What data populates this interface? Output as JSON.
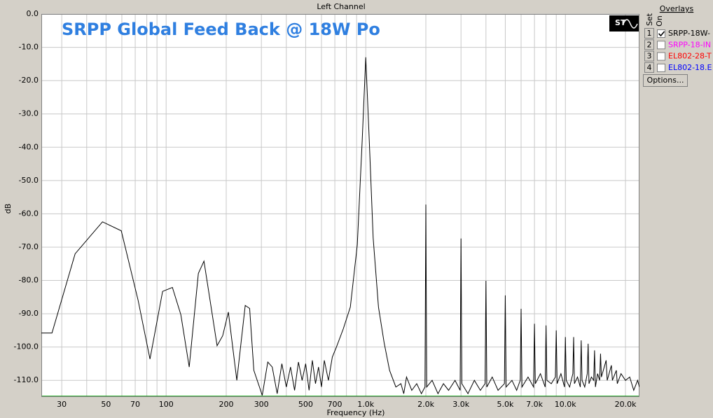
{
  "chart_data": {
    "type": "line",
    "title": "Left Channel",
    "annotation": "SRPP Global Feed Back @ 18W Po",
    "xlabel": "Frequency (Hz)",
    "ylabel": "dB",
    "xscale": "log",
    "grid": true,
    "xlim": [
      23.7,
      23500
    ],
    "ylim": [
      -115,
      0
    ],
    "xticks": [
      30,
      50,
      70,
      100,
      200,
      300,
      500,
      700,
      {
        "value": 1000,
        "label": "1.0k"
      },
      {
        "value": 2000,
        "label": "2.0k"
      },
      {
        "value": 3000,
        "label": "3.0k"
      },
      {
        "value": 5000,
        "label": "5.0k"
      },
      {
        "value": 7000,
        "label": "7.0k"
      },
      {
        "value": 10000,
        "label": "10.0k"
      },
      {
        "value": 20000,
        "label": "20.0k"
      }
    ],
    "xminorticks": [
      40,
      60,
      80,
      90,
      400,
      600,
      800,
      900,
      4000,
      6000,
      8000,
      9000
    ],
    "yticks": [
      {
        "value": 0,
        "label": "0.0"
      },
      {
        "value": -10,
        "label": "-10.0"
      },
      {
        "value": -20,
        "label": "-20.0"
      },
      {
        "value": -30,
        "label": "-30.0"
      },
      {
        "value": -40,
        "label": "-40.0"
      },
      {
        "value": -50,
        "label": "-50.0"
      },
      {
        "value": -60,
        "label": "-60.0"
      },
      {
        "value": -70,
        "label": "-70.0"
      },
      {
        "value": -80,
        "label": "-80.0"
      },
      {
        "value": -90,
        "label": "-90.0"
      },
      {
        "value": -100,
        "label": "-100.0"
      },
      {
        "value": -110,
        "label": "-110.0"
      }
    ],
    "x": [
      23.7,
      26.8,
      35,
      48,
      59.6,
      72.4,
      83,
      96,
      107.5,
      118.5,
      130.5,
      145,
      154.7,
      166,
      180,
      192,
      205,
      226,
      249,
      262,
      275,
      303,
      323,
      340,
      360,
      380,
      400,
      420,
      440,
      460,
      480,
      500,
      520,
      540,
      560,
      580,
      600,
      620,
      650,
      680,
      713,
      772,
      837,
      907,
      960,
      1000,
      1041,
      1089,
      1158,
      1236,
      1316,
      1415,
      1500,
      1550,
      1600,
      1700,
      1800,
      1900,
      1980,
      2000,
      2020,
      2150,
      2300,
      2450,
      2600,
      2800,
      2970,
      3000,
      3030,
      3250,
      3500,
      3750,
      3960,
      4000,
      4040,
      4300,
      4600,
      4950,
      5000,
      5050,
      5400,
      5700,
      5940,
      6000,
      6060,
      6500,
      6930,
      7000,
      7070,
      7500,
      7920,
      8000,
      8080,
      8500,
      8910,
      9000,
      9090,
      9500,
      9900,
      10000,
      10100,
      10500,
      10900,
      11000,
      11100,
      11500,
      11880,
      12000,
      12120,
      12500,
      12870,
      13000,
      13130,
      13500,
      13860,
      14000,
      14140,
      14500,
      14850,
      15000,
      15150,
      16000,
      16200,
      17000,
      17200,
      18000,
      18200,
      19000,
      20000,
      21000,
      22000,
      23000,
      23500
    ],
    "series": [
      {
        "name": "SRPP-18W-",
        "color": "#000000",
        "values": [
          -95.8,
          -95.8,
          -72,
          -62.4,
          -65.1,
          -86,
          -103.6,
          -83.3,
          -82.1,
          -90.3,
          -106,
          -77.9,
          -74.2,
          -86,
          -99.6,
          -96.6,
          -89.5,
          -110,
          -87.5,
          -88.4,
          -107,
          -114.5,
          -104.5,
          -106,
          -114,
          -105,
          -112,
          -106,
          -113,
          -104.5,
          -110,
          -105,
          -113,
          -104,
          -111,
          -106,
          -112,
          -104,
          -110,
          -103,
          -100,
          -94.5,
          -88,
          -69.3,
          -37.8,
          -13,
          -37.8,
          -67.2,
          -88,
          -98.7,
          -107,
          -112,
          -111,
          -114,
          -109,
          -113,
          -111,
          -114,
          -112,
          -57.2,
          -112,
          -110,
          -114,
          -111,
          -113,
          -110,
          -113,
          -67.4,
          -111,
          -114,
          -110,
          -113,
          -111,
          -80.1,
          -112,
          -109,
          -113,
          -111,
          -84.5,
          -112,
          -110,
          -113,
          -110,
          -88.5,
          -112,
          -109,
          -112,
          -93,
          -111,
          -108,
          -112,
          -93.5,
          -110,
          -111,
          -109,
          -95,
          -111,
          -108,
          -112,
          -97,
          -110,
          -112,
          -108,
          -97,
          -111,
          -109,
          -112,
          -98,
          -110,
          -112,
          -108,
          -99,
          -111,
          -109,
          -110,
          -101,
          -112,
          -108,
          -110,
          -102,
          -109,
          -104,
          -110,
          -105.5,
          -110,
          -107,
          -111,
          -108,
          -110,
          -109,
          -113,
          -110,
          -112
        ]
      }
    ]
  },
  "overlays": {
    "title": "Overlays",
    "set_label": "Set",
    "on_label": "On",
    "options_button": "Options...",
    "items": [
      {
        "set": 1,
        "checked": true
      },
      {
        "set": 2,
        "name": "SRPP-18-IN",
        "color": "#ff00ff",
        "checked": false
      },
      {
        "set": 3,
        "name": "EL802-28-T",
        "color": "#ff0000",
        "checked": false
      },
      {
        "set": 4,
        "name": "EL802-18.E",
        "color": "#0000ff",
        "checked": false
      }
    ]
  }
}
